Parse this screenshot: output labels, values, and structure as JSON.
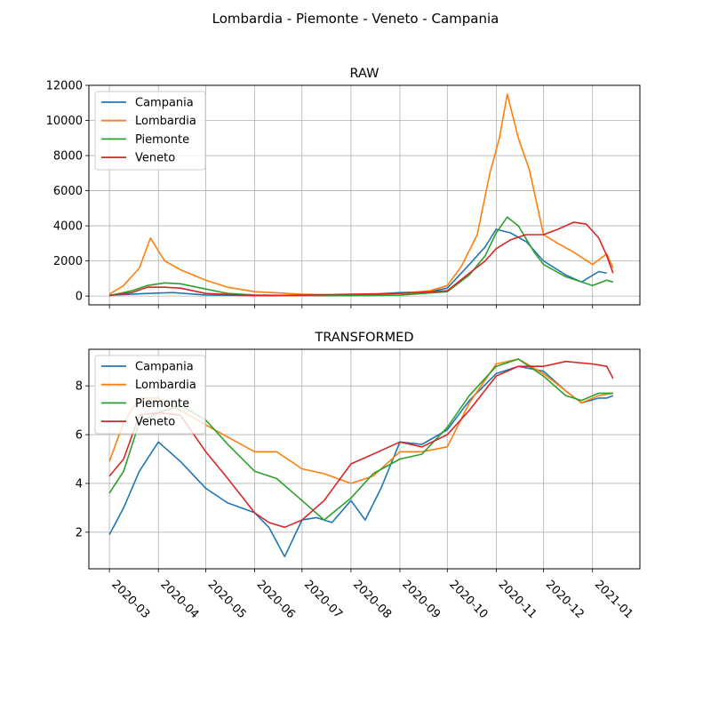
{
  "figure": {
    "title": "Lombardia - Piemonte - Veneto - Campania"
  },
  "colors": {
    "Campania": "#1f77b4",
    "Lombardia": "#ff7f0e",
    "Piemonte": "#2ca02c",
    "Veneto": "#d62728"
  },
  "chart_data": [
    {
      "type": "line",
      "title": "RAW",
      "xlabel": "",
      "ylabel": "",
      "ylim": [
        -500,
        12000
      ],
      "xlim": [
        "2020-02-17",
        "2021-01-31"
      ],
      "yticks": [
        0,
        2000,
        4000,
        6000,
        8000,
        10000,
        12000
      ],
      "xticks": [
        "2020-03",
        "2020-04",
        "2020-05",
        "2020-06",
        "2020-07",
        "2020-08",
        "2020-09",
        "2020-10",
        "2020-11",
        "2020-12",
        "2021-01"
      ],
      "grid": true,
      "legend": "upper-left",
      "series": [
        {
          "name": "Campania",
          "x": [
            "2020-03-01",
            "2020-03-15",
            "2020-03-25",
            "2020-04-10",
            "2020-05-01",
            "2020-06-01",
            "2020-07-01",
            "2020-08-01",
            "2020-09-01",
            "2020-09-20",
            "2020-10-01",
            "2020-10-15",
            "2020-10-25",
            "2020-11-01",
            "2020-11-10",
            "2020-11-20",
            "2020-12-01",
            "2020-12-15",
            "2020-12-25",
            "2021-01-05",
            "2021-01-10"
          ],
          "values": [
            50,
            100,
            150,
            200,
            60,
            20,
            20,
            30,
            200,
            250,
            450,
            1800,
            2800,
            3800,
            3600,
            3100,
            2000,
            1200,
            800,
            1400,
            1300
          ]
        },
        {
          "name": "Lombardia",
          "x": [
            "2020-03-01",
            "2020-03-10",
            "2020-03-20",
            "2020-03-27",
            "2020-04-05",
            "2020-04-15",
            "2020-05-01",
            "2020-05-15",
            "2020-06-01",
            "2020-07-01",
            "2020-08-01",
            "2020-09-01",
            "2020-09-20",
            "2020-10-01",
            "2020-10-10",
            "2020-10-20",
            "2020-10-28",
            "2020-11-03",
            "2020-11-08",
            "2020-11-15",
            "2020-11-22",
            "2020-12-01",
            "2020-12-10",
            "2020-12-20",
            "2021-01-01",
            "2021-01-10",
            "2021-01-14"
          ],
          "values": [
            100,
            600,
            1600,
            3300,
            2000,
            1500,
            900,
            500,
            250,
            100,
            50,
            150,
            300,
            600,
            1700,
            3500,
            7000,
            9000,
            11500,
            9000,
            7200,
            3500,
            3000,
            2500,
            1800,
            2400,
            1600
          ]
        },
        {
          "name": "Piemonte",
          "x": [
            "2020-03-01",
            "2020-03-15",
            "2020-03-25",
            "2020-04-05",
            "2020-04-15",
            "2020-05-01",
            "2020-05-15",
            "2020-06-01",
            "2020-07-01",
            "2020-08-01",
            "2020-09-01",
            "2020-10-01",
            "2020-10-15",
            "2020-10-25",
            "2020-11-01",
            "2020-11-08",
            "2020-11-15",
            "2020-11-25",
            "2020-12-01",
            "2020-12-15",
            "2021-01-01",
            "2021-01-10",
            "2021-01-14"
          ],
          "values": [
            20,
            300,
            600,
            750,
            700,
            400,
            150,
            60,
            20,
            20,
            50,
            250,
            1200,
            2300,
            3600,
            4500,
            4000,
            2500,
            1800,
            1100,
            600,
            900,
            800
          ]
        },
        {
          "name": "Veneto",
          "x": [
            "2020-03-01",
            "2020-03-15",
            "2020-03-25",
            "2020-04-05",
            "2020-04-15",
            "2020-05-01",
            "2020-06-01",
            "2020-07-01",
            "2020-08-01",
            "2020-09-01",
            "2020-10-01",
            "2020-10-15",
            "2020-10-25",
            "2020-11-01",
            "2020-11-10",
            "2020-11-20",
            "2020-12-01",
            "2020-12-10",
            "2020-12-20",
            "2020-12-28",
            "2021-01-05",
            "2021-01-10",
            "2021-01-14"
          ],
          "values": [
            30,
            200,
            500,
            500,
            450,
            150,
            30,
            50,
            100,
            150,
            300,
            1300,
            2000,
            2700,
            3200,
            3500,
            3500,
            3800,
            4200,
            4100,
            3300,
            2300,
            1300
          ]
        }
      ]
    },
    {
      "type": "line",
      "title": "TRANSFORMED",
      "xlabel": "",
      "ylabel": "",
      "ylim": [
        0.5,
        9.5
      ],
      "xlim": [
        "2020-02-17",
        "2021-01-31"
      ],
      "yticks": [
        2,
        4,
        6,
        8
      ],
      "xticks": [
        "2020-03",
        "2020-04",
        "2020-05",
        "2020-06",
        "2020-07",
        "2020-08",
        "2020-09",
        "2020-10",
        "2020-11",
        "2020-12",
        "2021-01"
      ],
      "grid": true,
      "legend": "upper-left",
      "series": [
        {
          "name": "Campania",
          "x": [
            "2020-03-01",
            "2020-03-10",
            "2020-03-20",
            "2020-04-01",
            "2020-04-15",
            "2020-05-01",
            "2020-05-15",
            "2020-06-01",
            "2020-06-10",
            "2020-06-20",
            "2020-07-01",
            "2020-07-10",
            "2020-07-20",
            "2020-08-01",
            "2020-08-10",
            "2020-08-20",
            "2020-09-01",
            "2020-09-15",
            "2020-10-01",
            "2020-10-15",
            "2020-11-01",
            "2020-11-15",
            "2020-12-01",
            "2020-12-15",
            "2020-12-25",
            "2021-01-05",
            "2021-01-10",
            "2021-01-14"
          ],
          "values": [
            1.9,
            3.0,
            4.5,
            5.7,
            4.9,
            3.8,
            3.2,
            2.8,
            2.2,
            1.0,
            2.5,
            2.6,
            2.4,
            3.3,
            2.5,
            3.8,
            5.7,
            5.6,
            6.2,
            7.4,
            8.5,
            8.8,
            8.6,
            7.8,
            7.3,
            7.5,
            7.5,
            7.6
          ]
        },
        {
          "name": "Lombardia",
          "x": [
            "2020-03-01",
            "2020-03-10",
            "2020-03-20",
            "2020-04-01",
            "2020-04-15",
            "2020-05-01",
            "2020-05-15",
            "2020-06-01",
            "2020-06-15",
            "2020-07-01",
            "2020-07-15",
            "2020-08-01",
            "2020-08-15",
            "2020-09-01",
            "2020-09-15",
            "2020-10-01",
            "2020-10-15",
            "2020-11-01",
            "2020-11-15",
            "2020-12-01",
            "2020-12-15",
            "2020-12-25",
            "2021-01-05",
            "2021-01-14"
          ],
          "values": [
            4.9,
            6.5,
            7.5,
            7.5,
            7.0,
            6.4,
            5.9,
            5.3,
            5.3,
            4.6,
            4.4,
            4.0,
            4.3,
            5.3,
            5.3,
            5.5,
            7.3,
            8.9,
            9.1,
            8.5,
            7.8,
            7.3,
            7.6,
            7.7
          ]
        },
        {
          "name": "Piemonte",
          "x": [
            "2020-03-01",
            "2020-03-10",
            "2020-03-20",
            "2020-04-01",
            "2020-04-15",
            "2020-05-01",
            "2020-05-15",
            "2020-06-01",
            "2020-06-15",
            "2020-07-01",
            "2020-07-15",
            "2020-08-01",
            "2020-08-15",
            "2020-09-01",
            "2020-09-15",
            "2020-10-01",
            "2020-10-15",
            "2020-11-01",
            "2020-11-15",
            "2020-12-01",
            "2020-12-15",
            "2020-12-25",
            "2021-01-05",
            "2021-01-14"
          ],
          "values": [
            3.6,
            4.5,
            6.5,
            6.9,
            7.2,
            6.6,
            5.6,
            4.5,
            4.2,
            3.3,
            2.5,
            3.4,
            4.4,
            5.0,
            5.2,
            6.3,
            7.6,
            8.8,
            9.1,
            8.4,
            7.6,
            7.4,
            7.7,
            7.7
          ]
        },
        {
          "name": "Veneto",
          "x": [
            "2020-03-01",
            "2020-03-10",
            "2020-03-20",
            "2020-04-01",
            "2020-04-15",
            "2020-05-01",
            "2020-05-15",
            "2020-06-01",
            "2020-06-10",
            "2020-06-20",
            "2020-07-01",
            "2020-07-15",
            "2020-08-01",
            "2020-08-15",
            "2020-09-01",
            "2020-09-15",
            "2020-10-01",
            "2020-10-15",
            "2020-11-01",
            "2020-11-15",
            "2020-12-01",
            "2020-12-15",
            "2021-01-01",
            "2021-01-10",
            "2021-01-14"
          ],
          "values": [
            4.3,
            5.0,
            6.8,
            6.9,
            6.8,
            5.3,
            4.2,
            2.8,
            2.4,
            2.2,
            2.5,
            3.3,
            4.8,
            5.2,
            5.7,
            5.5,
            6.0,
            7.0,
            8.4,
            8.8,
            8.8,
            9.0,
            8.9,
            8.8,
            8.3
          ]
        }
      ]
    }
  ]
}
